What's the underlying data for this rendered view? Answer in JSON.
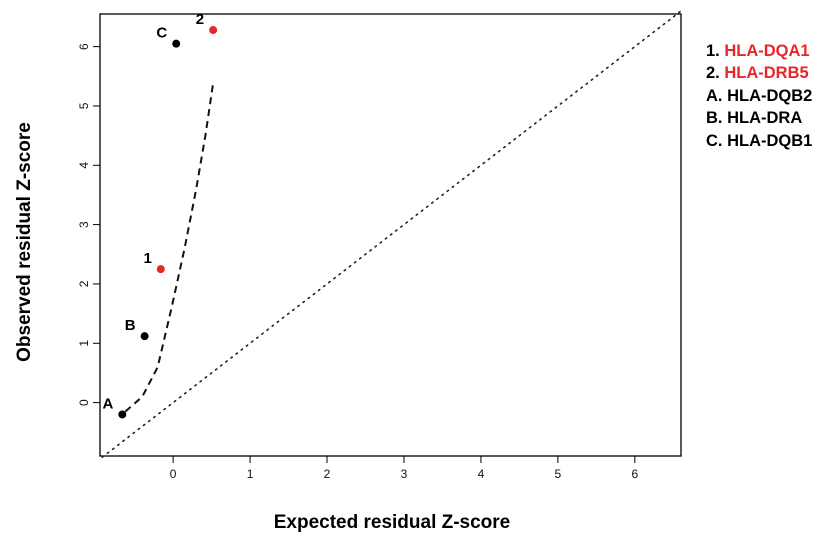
{
  "chart_data": {
    "type": "scatter",
    "xlabel": "Expected residual Z-score",
    "ylabel": "Observed residual Z-score",
    "xlim": [
      -0.95,
      6.6
    ],
    "ylim": [
      -0.9,
      6.55
    ],
    "xticks": [
      "0",
      "1",
      "2",
      "3",
      "4",
      "5",
      "6"
    ],
    "yticks": [
      "0",
      "1",
      "2",
      "3",
      "4",
      "5",
      "6"
    ],
    "grid": false,
    "colors": {
      "highlight": "#e8262a",
      "default": "#000000"
    },
    "points": [
      {
        "label": "A",
        "x": -0.66,
        "y": -0.2,
        "color": "#000000"
      },
      {
        "label": "B",
        "x": -0.37,
        "y": 1.12,
        "color": "#000000"
      },
      {
        "label": "1",
        "x": -0.16,
        "y": 2.25,
        "color": "#e8262a"
      },
      {
        "label": "C",
        "x": 0.04,
        "y": 6.05,
        "color": "#000000"
      },
      {
        "label": "2",
        "x": 0.52,
        "y": 6.28,
        "color": "#e8262a"
      }
    ],
    "dashed_curve": [
      [
        -0.62,
        -0.15
      ],
      [
        -0.4,
        0.1
      ],
      [
        -0.2,
        0.6
      ],
      [
        -0.02,
        1.6
      ],
      [
        0.15,
        2.6
      ],
      [
        0.3,
        3.6
      ],
      [
        0.42,
        4.5
      ],
      [
        0.52,
        5.38
      ]
    ],
    "identity_line": [
      [
        -0.92,
        -0.92
      ],
      [
        6.6,
        6.6
      ]
    ],
    "legend": [
      {
        "prefix": "1. ",
        "name": "HLA-DQA1",
        "color": "#e8262a"
      },
      {
        "prefix": "2. ",
        "name": "HLA-DRB5",
        "color": "#e8262a"
      },
      {
        "prefix": "A. ",
        "name": "HLA-DQB2",
        "color": "#000000"
      },
      {
        "prefix": "B. ",
        "name": "HLA-DRA",
        "color": "#000000"
      },
      {
        "prefix": "C. ",
        "name": "HLA-DQB1",
        "color": "#000000"
      }
    ],
    "legend_position": "right"
  }
}
